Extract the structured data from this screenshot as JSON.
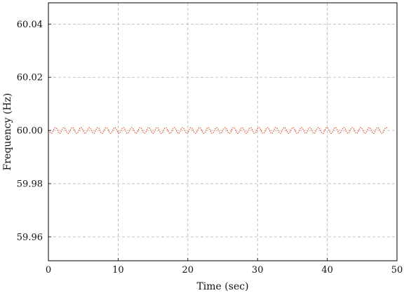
{
  "chart_data": {
    "type": "line",
    "xlabel": "Time (sec)",
    "ylabel": "Frequency (Hz)",
    "xlim": [
      0,
      50
    ],
    "ylim": [
      59.951,
      60.048
    ],
    "xticks": [
      0,
      10,
      20,
      30,
      40,
      50
    ],
    "xtick_labels": [
      "0",
      "10",
      "20",
      "30",
      "40",
      "50"
    ],
    "yticks": [
      59.96,
      59.98,
      60.0,
      60.02,
      60.04
    ],
    "ytick_labels": [
      "59.96",
      "59.98",
      "60.00",
      "60.02",
      "60.04"
    ],
    "grid": true,
    "legend": "none",
    "t_step": 0.1,
    "series": [
      {
        "color": "#e8502a",
        "style": "dotted",
        "values": [
          60.0,
          59.9998,
          59.9994,
          59.9991,
          59.9989,
          59.999,
          59.9994,
          60.0,
          60.0006,
          60.0009,
          60.0011,
          60.001,
          60.0007,
          60.0001,
          59.9995,
          59.9991,
          59.9989,
          59.999,
          59.9994,
          59.9999,
          60.0005,
          60.0009,
          60.0011,
          60.001,
          60.0007,
          60.0002,
          59.9996,
          59.9991,
          59.9989,
          59.9989,
          59.9993,
          59.9998,
          60.0004,
          60.0009,
          60.0011,
          60.0011,
          60.0008,
          60.0003,
          59.9997,
          59.9992,
          59.9989,
          59.9989,
          59.9992,
          59.9997,
          60.0003,
          60.0008,
          60.0011,
          60.0011,
          60.0009,
          60.0004,
          59.9998,
          59.9993,
          59.9989,
          59.9989,
          59.9991,
          59.9996,
          60.0002,
          60.0007,
          60.0011,
          60.0011,
          60.0009,
          60.0005,
          59.9999,
          59.9993,
          59.999,
          59.9989,
          59.999,
          59.9995,
          60.0001,
          60.0006,
          60.001,
          60.0011,
          60.001,
          60.0006,
          60.0,
          59.9994,
          59.999,
          59.9989,
          59.999,
          59.9994,
          60.0,
          60.0006,
          60.001,
          60.0011,
          60.001,
          60.0006,
          60.0001,
          59.9995,
          59.999,
          59.9989,
          59.999,
          59.9993,
          59.9999,
          60.0005,
          60.0009,
          60.0011,
          60.001,
          60.0007,
          60.0002,
          59.9996,
          59.9991,
          59.9989,
          59.9989,
          59.9993,
          59.9998,
          60.0004,
          60.0009,
          60.0011,
          60.0011,
          60.0008,
          60.0003,
          59.9997,
          59.9992,
          59.9989,
          59.9989,
          59.9992,
          59.9997,
          60.0003,
          60.0008,
          60.0011,
          60.0011,
          60.0008,
          60.0004,
          59.9998,
          59.9993,
          59.9989,
          59.9989,
          59.9991,
          59.9996,
          60.0002,
          60.0007,
          60.001,
          60.0011,
          60.0009,
          60.0005,
          59.9999,
          59.9993,
          59.999,
          59.9989,
          59.9991,
          59.9995,
          60.0001,
          60.0006,
          60.001,
          60.0011,
          60.001,
          60.0006,
          60.0,
          59.9994,
          59.999,
          59.9989,
          59.999,
          59.9994,
          60.0,
          60.0006,
          60.001,
          60.0011,
          60.001,
          60.0006,
          60.0001,
          59.9995,
          59.999,
          59.9989,
          59.999,
          59.9993,
          59.9999,
          60.0005,
          60.0009,
          60.0011,
          60.001,
          60.0007,
          60.0002,
          59.9996,
          59.9991,
          59.9989,
          59.9989,
          59.9993,
          59.9998,
          60.0004,
          60.0009,
          60.0011,
          60.0011,
          60.0008,
          60.0003,
          59.9997,
          59.9992,
          59.9989,
          59.9989,
          59.9992,
          59.9997,
          60.0003,
          60.0008,
          60.0011,
          60.0011,
          60.0008,
          60.0004,
          59.9998,
          59.9993,
          59.9989,
          59.9989,
          59.9991,
          59.9996,
          60.0002,
          60.0007,
          60.0011,
          60.0011,
          60.0009,
          60.0005,
          59.9999,
          59.9993,
          59.999,
          59.9989,
          59.9991,
          59.9995,
          60.0001,
          60.0006,
          60.001,
          60.0011,
          60.001,
          60.0006,
          60.0,
          59.9994,
          59.999,
          59.9989,
          59.999,
          59.9994,
          60.0,
          60.0006,
          60.001,
          60.0011,
          60.001,
          60.0006,
          60.0001,
          59.9995,
          59.999,
          59.9989,
          59.999,
          59.9993,
          59.9999,
          60.0005,
          60.0009,
          60.0011,
          60.001,
          60.0007,
          60.0002,
          59.9996,
          59.9991,
          59.9989,
          59.9989,
          59.9993,
          59.9998,
          60.0004,
          60.0009,
          60.0011,
          60.0011,
          60.0008,
          60.0003,
          59.9997,
          59.9992,
          59.9989,
          59.9989,
          59.9992,
          59.9997,
          60.0003,
          60.0008,
          60.0011,
          60.0011,
          60.0009,
          60.0004,
          59.9998,
          59.9993,
          59.9989,
          59.9989,
          59.9991,
          59.9996,
          60.0002,
          60.0007,
          60.001,
          60.0011,
          60.0009,
          60.0005,
          59.9999,
          59.9993,
          59.999,
          59.9989,
          59.9991,
          59.9995,
          60.0001,
          60.0006,
          60.001,
          60.0011,
          60.001,
          60.0006,
          60.0,
          59.9994,
          59.999,
          59.9989,
          59.999,
          59.9994,
          60.0,
          60.0006,
          60.001,
          60.0011,
          60.001,
          60.0006,
          60.0001,
          59.9995,
          59.999,
          59.9989,
          59.999,
          59.9993,
          59.9999,
          60.0005,
          60.0009,
          60.0011,
          60.001,
          60.0007,
          60.0002,
          59.9996,
          59.9991,
          59.9989,
          59.9989,
          59.9993,
          59.9998,
          60.0004,
          60.0009,
          60.0011,
          60.0011,
          60.0008,
          60.0003,
          59.9997,
          59.9992,
          59.9989,
          59.9989,
          59.9992,
          59.9997,
          60.0003,
          60.0008,
          60.0011,
          60.0011,
          60.0008,
          60.0004,
          59.9998,
          59.9993,
          59.9989,
          59.9989,
          59.9991,
          59.9996,
          60.0002,
          60.0007,
          60.0011,
          60.0011,
          60.0009,
          60.0005,
          59.9999,
          59.9993,
          59.999,
          59.9989,
          59.9991,
          59.9995,
          60.0001,
          60.0006,
          60.001,
          60.0011,
          60.001,
          60.0006,
          60.0,
          59.9994,
          59.999,
          59.9989,
          59.999,
          59.9994,
          60.0,
          60.0006,
          60.001,
          60.0011,
          60.001,
          60.0006,
          60.0001,
          59.9995,
          59.999,
          59.9989,
          59.999,
          59.9993,
          59.9999,
          60.0005,
          60.0009,
          60.0011,
          60.001,
          60.0007,
          60.0002,
          59.9996,
          59.9991,
          59.9989,
          59.9989,
          59.9993,
          59.9998,
          60.0004,
          60.0009,
          60.0011,
          60.0011,
          60.0008,
          60.0003,
          59.9997,
          59.9992,
          59.9989,
          59.9989,
          59.9992,
          59.9997,
          60.0003,
          60.0008,
          60.0011,
          60.0011,
          60.0009,
          60.0004,
          59.9998,
          59.9993,
          59.9989,
          59.9989,
          59.9991,
          59.9996,
          60.0002,
          60.0007,
          60.001,
          60.0011,
          60.0009,
          60.0005,
          59.9999,
          59.9993,
          59.999,
          59.9989,
          59.9991,
          59.9995,
          60.0001,
          60.0006,
          60.001,
          60.0011,
          60.001,
          60.0006,
          60.0,
          59.9994,
          59.999,
          59.9989,
          59.999,
          59.9994,
          60.0,
          60.0006,
          60.001,
          60.0011,
          60.001,
          60.0006,
          60.0001,
          59.9995,
          59.999,
          59.9989,
          59.999,
          59.9993,
          59.9999,
          60.0005,
          60.0009,
          60.0011,
          60.001,
          60.0007,
          60.0002,
          59.9996,
          59.9991,
          59.9989,
          59.9989,
          59.9993,
          59.9998,
          60.0004,
          60.0009,
          60.0011,
          60.0011,
          60.0008,
          60.0003,
          59.9997,
          59.9992,
          59.9989,
          59.9989,
          59.9992,
          59.9997,
          60.0003,
          60.0008,
          60.0011,
          60.0011,
          60.0008
        ]
      }
    ]
  }
}
